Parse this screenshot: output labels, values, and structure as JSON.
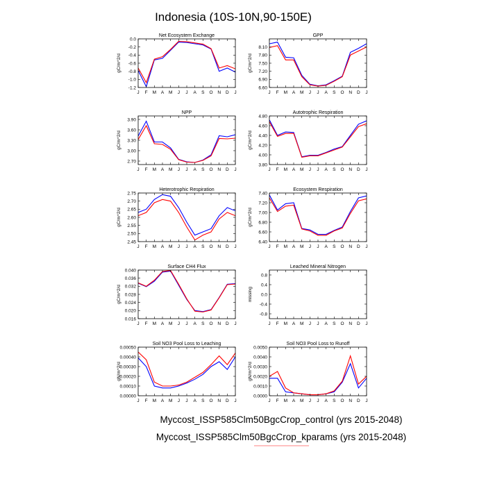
{
  "figure": {
    "title": "Indonesia (10S-10N,90-150E)",
    "legend": [
      {
        "text": "Myccost_ISSP585Clm50BgcCrop_control (yrs 2015-2048)",
        "color": "#0000ff"
      },
      {
        "text": "Myccost_ISSP585Clm50BgcCrop_kparams (yrs 2015-2048)",
        "color": "#ff0000"
      }
    ]
  },
  "chart_data": [
    {
      "type": "line",
      "title": "Net Ecosystem Exchange",
      "ylabel": "gC/m^2/d",
      "categories": [
        "J",
        "F",
        "M",
        "A",
        "M",
        "J",
        "J",
        "A",
        "S",
        "O",
        "N",
        "D",
        "J"
      ],
      "ylim": [
        -1.2,
        0.0
      ],
      "yticks": [
        "-1.2",
        "-1.0",
        "-0.8",
        "-0.6",
        "-0.4",
        "-0.2",
        "0.0"
      ],
      "series": [
        {
          "name": "control",
          "color": "#0000ff",
          "values": [
            -0.78,
            -1.18,
            -0.52,
            -0.48,
            -0.28,
            -0.08,
            -0.09,
            -0.12,
            -0.15,
            -0.25,
            -0.8,
            -0.72,
            -0.82
          ]
        },
        {
          "name": "kparams",
          "color": "#ff0000",
          "values": [
            -0.72,
            -1.08,
            -0.5,
            -0.44,
            -0.26,
            -0.06,
            -0.07,
            -0.1,
            -0.13,
            -0.24,
            -0.72,
            -0.66,
            -0.74
          ]
        }
      ]
    },
    {
      "type": "line",
      "title": "GPP",
      "ylabel": "gC/m^2/d",
      "categories": [
        "J",
        "F",
        "M",
        "A",
        "M",
        "J",
        "J",
        "A",
        "S",
        "O",
        "N",
        "D",
        "J"
      ],
      "ylim": [
        6.6,
        8.4
      ],
      "yticks": [
        "6.60",
        "6.90",
        "7.20",
        "7.50",
        "7.80",
        "8.10"
      ],
      "series": [
        {
          "name": "control",
          "color": "#0000ff",
          "values": [
            8.22,
            8.28,
            7.72,
            7.7,
            7.05,
            6.72,
            6.66,
            6.7,
            6.85,
            7.02,
            7.9,
            8.05,
            8.22
          ]
        },
        {
          "name": "kparams",
          "color": "#ff0000",
          "values": [
            8.08,
            8.15,
            7.62,
            7.62,
            7.0,
            6.7,
            6.65,
            6.68,
            6.83,
            7.0,
            7.8,
            7.95,
            8.1
          ]
        }
      ]
    },
    {
      "type": "line",
      "title": "NPP",
      "ylabel": "gC/m^2/d",
      "categories": [
        "J",
        "F",
        "M",
        "A",
        "M",
        "J",
        "J",
        "A",
        "S",
        "O",
        "N",
        "D",
        "J"
      ],
      "ylim": [
        2.6,
        4.0
      ],
      "yticks": [
        "2.70",
        "3.00",
        "3.30",
        "3.60",
        "3.90"
      ],
      "series": [
        {
          "name": "control",
          "color": "#0000ff",
          "values": [
            3.42,
            3.85,
            3.25,
            3.25,
            3.08,
            2.75,
            2.68,
            2.66,
            2.73,
            2.88,
            3.43,
            3.4,
            3.46
          ]
        },
        {
          "name": "kparams",
          "color": "#ff0000",
          "values": [
            3.32,
            3.72,
            3.2,
            3.18,
            3.04,
            2.74,
            2.67,
            2.66,
            2.72,
            2.85,
            3.35,
            3.34,
            3.36
          ]
        }
      ]
    },
    {
      "type": "line",
      "title": "Autotrophic Respiration",
      "ylabel": "gC/m^2/d",
      "categories": [
        "J",
        "F",
        "M",
        "A",
        "M",
        "J",
        "J",
        "A",
        "S",
        "O",
        "N",
        "D",
        "J"
      ],
      "ylim": [
        3.8,
        4.8
      ],
      "yticks": [
        "3.80",
        "4.00",
        "4.20",
        "4.40",
        "4.60",
        "4.80"
      ],
      "series": [
        {
          "name": "control",
          "color": "#0000ff",
          "values": [
            4.72,
            4.4,
            4.47,
            4.46,
            3.96,
            3.99,
            3.99,
            4.05,
            4.12,
            4.17,
            4.4,
            4.63,
            4.7
          ]
        },
        {
          "name": "kparams",
          "color": "#ff0000",
          "values": [
            4.68,
            4.38,
            4.44,
            4.44,
            3.95,
            3.98,
            3.98,
            4.04,
            4.1,
            4.16,
            4.37,
            4.58,
            4.64
          ]
        }
      ]
    },
    {
      "type": "line",
      "title": "Heterotrophic Respiration",
      "ylabel": "gC/m^2/d",
      "categories": [
        "J",
        "F",
        "M",
        "A",
        "M",
        "J",
        "J",
        "A",
        "S",
        "O",
        "N",
        "D",
        "J"
      ],
      "ylim": [
        2.45,
        2.75
      ],
      "yticks": [
        "2.45",
        "2.50",
        "2.55",
        "2.60",
        "2.65",
        "2.70",
        "2.75"
      ],
      "series": [
        {
          "name": "control",
          "color": "#0000ff",
          "values": [
            2.63,
            2.65,
            2.71,
            2.74,
            2.73,
            2.66,
            2.57,
            2.49,
            2.51,
            2.53,
            2.61,
            2.66,
            2.64
          ]
        },
        {
          "name": "kparams",
          "color": "#ff0000",
          "values": [
            2.61,
            2.63,
            2.69,
            2.71,
            2.7,
            2.63,
            2.54,
            2.46,
            2.49,
            2.51,
            2.59,
            2.63,
            2.61
          ]
        }
      ]
    },
    {
      "type": "line",
      "title": "Ecosystem Respiration",
      "ylabel": "gC/m^2/d",
      "categories": [
        "J",
        "F",
        "M",
        "A",
        "M",
        "J",
        "J",
        "A",
        "S",
        "O",
        "N",
        "D",
        "J"
      ],
      "ylim": [
        6.4,
        7.4
      ],
      "yticks": [
        "6.40",
        "6.60",
        "6.80",
        "7.00",
        "7.20",
        "7.40"
      ],
      "series": [
        {
          "name": "control",
          "color": "#0000ff",
          "values": [
            7.36,
            7.05,
            7.18,
            7.2,
            6.67,
            6.64,
            6.55,
            6.55,
            6.63,
            6.7,
            7.02,
            7.3,
            7.34
          ]
        },
        {
          "name": "kparams",
          "color": "#ff0000",
          "values": [
            7.3,
            7.02,
            7.13,
            7.15,
            6.66,
            6.62,
            6.53,
            6.53,
            6.62,
            6.68,
            6.98,
            7.24,
            7.28
          ]
        }
      ]
    },
    {
      "type": "line",
      "title": "Surface CH4 Flux",
      "ylabel": "gC/m^2/d",
      "categories": [
        "J",
        "F",
        "M",
        "A",
        "M",
        "J",
        "J",
        "A",
        "S",
        "O",
        "N",
        "D",
        "J"
      ],
      "ylim": [
        0.016,
        0.04
      ],
      "yticks": [
        "0.016",
        "0.020",
        "0.024",
        "0.028",
        "0.032",
        "0.036",
        "0.040"
      ],
      "series": [
        {
          "name": "control",
          "color": "#0000ff",
          "values": [
            0.0335,
            0.0318,
            0.0345,
            0.039,
            0.0395,
            0.0325,
            0.0255,
            0.02,
            0.0195,
            0.0205,
            0.0265,
            0.033,
            0.0333
          ]
        },
        {
          "name": "kparams",
          "color": "#ff0000",
          "values": [
            0.0337,
            0.032,
            0.035,
            0.0393,
            0.0398,
            0.033,
            0.0258,
            0.0197,
            0.0193,
            0.0203,
            0.0263,
            0.0328,
            0.0331
          ]
        }
      ]
    },
    {
      "type": "line",
      "title": "Leached Mineral Nitrogen",
      "ylabel": "missing",
      "categories": [
        "J",
        "F",
        "M",
        "A",
        "M",
        "J",
        "J",
        "A",
        "S",
        "O",
        "N",
        "D",
        "J"
      ],
      "ylim": [
        -1.0,
        1.0
      ],
      "yticks": [
        "-0.8",
        "-0.4",
        "0.0",
        "0.4",
        "0.8"
      ],
      "series": []
    },
    {
      "type": "line",
      "title": "Soil NO3 Pool Loss to Leaching",
      "ylabel": "gN/m^2/d",
      "categories": [
        "J",
        "F",
        "M",
        "A",
        "M",
        "J",
        "J",
        "A",
        "S",
        "O",
        "N",
        "D",
        "J"
      ],
      "ylim": [
        0.0,
        0.0005
      ],
      "yticks": [
        "0.00000",
        "0.00010",
        "0.00020",
        "0.00030",
        "0.00040",
        "0.00050"
      ],
      "series": [
        {
          "name": "control",
          "color": "#0000ff",
          "values": [
            0.00039,
            0.0003,
            0.0001,
            8e-05,
            8e-05,
            0.0001,
            0.00013,
            0.00017,
            0.00022,
            0.0003,
            0.00035,
            0.00027,
            0.0004
          ]
        },
        {
          "name": "kparams",
          "color": "#ff0000",
          "values": [
            0.00045,
            0.00037,
            0.00014,
            0.0001,
            0.0001,
            0.00011,
            0.00014,
            0.00019,
            0.00024,
            0.00032,
            0.00041,
            0.00032,
            0.00044
          ]
        }
      ]
    },
    {
      "type": "line",
      "title": "Soil NO3 Pool Loss to Runoff",
      "ylabel": "gN/m^2/d",
      "categories": [
        "J",
        "F",
        "M",
        "A",
        "M",
        "J",
        "J",
        "A",
        "S",
        "O",
        "N",
        "D",
        "J"
      ],
      "ylim": [
        0.0,
        0.005
      ],
      "yticks": [
        "0.0000",
        "0.0010",
        "0.0020",
        "0.0030",
        "0.0040",
        "0.0050"
      ],
      "series": [
        {
          "name": "control",
          "color": "#0000ff",
          "values": [
            0.0018,
            0.0018,
            0.0004,
            0.0003,
            0.0002,
            0.0001,
            0.0001,
            0.0002,
            0.0004,
            0.0014,
            0.0033,
            0.0008,
            0.0018
          ]
        },
        {
          "name": "kparams",
          "color": "#ff0000",
          "values": [
            0.002,
            0.0025,
            0.0008,
            0.0003,
            0.0002,
            0.0001,
            0.0001,
            0.0002,
            0.0005,
            0.0015,
            0.0041,
            0.0012,
            0.002
          ]
        }
      ]
    }
  ]
}
